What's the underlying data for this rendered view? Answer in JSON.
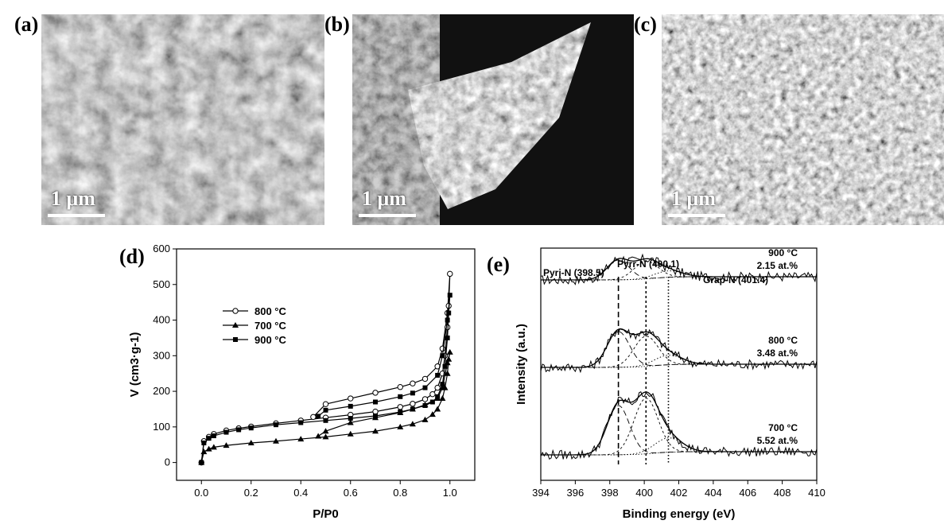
{
  "panels": {
    "a": {
      "label": "(a)",
      "scale": "1 μm"
    },
    "b": {
      "label": "(b)",
      "scale": "1 μm"
    },
    "c": {
      "label": "(c)",
      "scale": "1 μm"
    },
    "d": {
      "label": "(d)"
    },
    "e": {
      "label": "(e)"
    }
  },
  "chart_data": [
    {
      "type": "line",
      "xlabel": "P/P0",
      "ylabel": "V (cm3·g-1)",
      "xlim": [
        -0.1,
        1.1
      ],
      "ylim": [
        -50,
        600
      ],
      "xticks": [
        "0.0",
        "0.2",
        "0.4",
        "0.6",
        "0.8",
        "1.0"
      ],
      "yticks": [
        "0",
        "100",
        "200",
        "300",
        "400",
        "500",
        "600"
      ],
      "legend_position": "upper-left",
      "grid": false,
      "series": [
        {
          "name": "800 °C",
          "marker": "circle",
          "x": [
            0.0,
            0.01,
            0.03,
            0.05,
            0.1,
            0.15,
            0.2,
            0.3,
            0.4,
            0.5,
            0.6,
            0.7,
            0.8,
            0.85,
            0.9,
            0.93,
            0.95,
            0.97,
            0.98,
            0.99,
            0.995,
            1.0,
            0.99,
            0.97,
            0.95,
            0.9,
            0.85,
            0.8,
            0.7,
            0.6,
            0.5,
            0.45
          ],
          "y": [
            0,
            60,
            72,
            80,
            90,
            96,
            101,
            110,
            118,
            126,
            134,
            143,
            156,
            165,
            178,
            192,
            210,
            250,
            300,
            380,
            440,
            530,
            420,
            320,
            270,
            235,
            222,
            212,
            196,
            180,
            164,
            128
          ]
        },
        {
          "name": "700 °C",
          "marker": "triangle",
          "x": [
            0.0,
            0.01,
            0.03,
            0.05,
            0.1,
            0.2,
            0.3,
            0.4,
            0.5,
            0.6,
            0.7,
            0.8,
            0.85,
            0.9,
            0.93,
            0.95,
            0.97,
            0.98,
            0.99,
            0.995,
            1.0,
            0.99,
            0.97,
            0.95,
            0.9,
            0.85,
            0.8,
            0.7,
            0.6,
            0.5,
            0.47
          ],
          "y": [
            0,
            30,
            38,
            43,
            48,
            55,
            60,
            66,
            72,
            80,
            88,
            100,
            108,
            120,
            135,
            150,
            180,
            210,
            250,
            290,
            310,
            280,
            210,
            180,
            162,
            150,
            140,
            126,
            112,
            88,
            74
          ]
        },
        {
          "name": "900 °C",
          "marker": "square",
          "x": [
            0.0,
            0.01,
            0.03,
            0.05,
            0.1,
            0.15,
            0.2,
            0.3,
            0.4,
            0.5,
            0.6,
            0.7,
            0.8,
            0.85,
            0.9,
            0.93,
            0.95,
            0.97,
            0.98,
            0.99,
            0.995,
            1.0,
            0.99,
            0.97,
            0.95,
            0.9,
            0.85,
            0.8,
            0.7,
            0.6,
            0.5,
            0.47
          ],
          "y": [
            0,
            55,
            68,
            75,
            85,
            92,
            97,
            106,
            112,
            118,
            124,
            131,
            142,
            150,
            160,
            170,
            185,
            220,
            270,
            350,
            420,
            470,
            400,
            300,
            245,
            210,
            195,
            185,
            170,
            158,
            147,
            130
          ]
        }
      ]
    },
    {
      "type": "line",
      "xlabel": "Binding energy (eV)",
      "ylabel": "Intensity (a.u.)",
      "xlim": [
        394,
        410
      ],
      "xticks": [
        "394",
        "396",
        "398",
        "400",
        "402",
        "404",
        "406",
        "408",
        "410"
      ],
      "reference_lines": [
        398.5,
        400.1,
        401.4
      ],
      "peak_labels": [
        {
          "text": "Pyri-N (398.5)",
          "x": 398.5
        },
        {
          "text": "Pyrr-N (400.1)",
          "x": 400.1
        },
        {
          "text": "Grap-N (401.4)",
          "x": 401.4
        }
      ],
      "spectra": [
        {
          "temp": "900 °C",
          "content": "2.15 at.%",
          "offset": 2.2,
          "amps": [
            0.25,
            0.22,
            0.08
          ]
        },
        {
          "temp": "800 °C",
          "content": "3.48 at.%",
          "offset": 1.1,
          "amps": [
            0.45,
            0.38,
            0.12
          ]
        },
        {
          "temp": "700 °C",
          "content": "5.52 at.%",
          "offset": 0.0,
          "amps": [
            0.62,
            0.7,
            0.18
          ]
        }
      ]
    }
  ]
}
